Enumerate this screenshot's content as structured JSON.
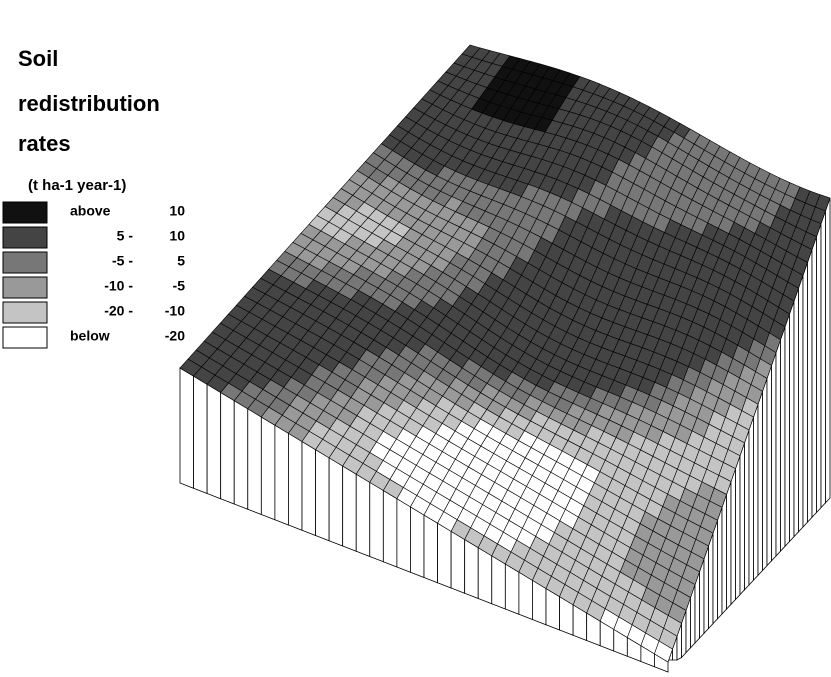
{
  "legend": {
    "title": [
      "Soil",
      "redistribution",
      "rates"
    ],
    "units": "(t ha-1 year-1)",
    "items": [
      {
        "color": "#111111",
        "label": "above",
        "value": "10"
      },
      {
        "color": "#444444",
        "label": "5 -",
        "value": "10"
      },
      {
        "color": "#777777",
        "label": "-5 -",
        "value": "5"
      },
      {
        "color": "#999999",
        "label": "-10 -",
        "value": "-5"
      },
      {
        "color": "#c4c4c4",
        "label": "-20 -",
        "value": "-10"
      },
      {
        "color": "#ffffff",
        "label": "below",
        "value": "-20"
      }
    ]
  }
}
